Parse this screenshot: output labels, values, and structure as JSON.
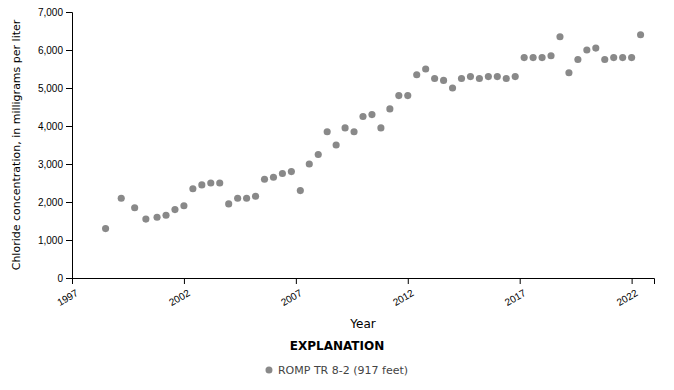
{
  "chart_data": {
    "type": "scatter",
    "xlabel": "Year",
    "ylabel": "Chloride concentration, in milligrams per liter",
    "xlim": [
      1997,
      2023
    ],
    "ylim": [
      0,
      7000
    ],
    "xticks": [
      1997,
      2002,
      2007,
      2012,
      2017,
      2022
    ],
    "yticks": [
      0,
      {
        "value": 1000,
        "label": "1,000"
      },
      {
        "value": 2000,
        "label": "2,000"
      },
      {
        "value": 3000,
        "label": "3,000"
      },
      {
        "value": 4000,
        "label": "4,000"
      },
      {
        "value": 5000,
        "label": "5,000"
      },
      {
        "value": 6000,
        "label": "6,000"
      },
      {
        "value": 7000,
        "label": "7,000"
      }
    ],
    "grid": false,
    "legend": "bottom",
    "annotations": [
      "EXPLANATION"
    ],
    "series": [
      {
        "name": "ROMP TR 8-2 (917 feet)",
        "color": "#898989",
        "marker": "circle",
        "x": [
          1998.5,
          1999.2,
          1999.8,
          2000.3,
          2000.8,
          2001.2,
          2001.6,
          2002.0,
          2002.4,
          2002.8,
          2003.2,
          2003.6,
          2004.0,
          2004.4,
          2004.8,
          2005.2,
          2005.6,
          2006.0,
          2006.4,
          2006.8,
          2007.2,
          2007.6,
          2008.0,
          2008.4,
          2008.8,
          2009.2,
          2009.6,
          2010.0,
          2010.4,
          2010.8,
          2011.2,
          2011.6,
          2012.0,
          2012.4,
          2012.8,
          2013.2,
          2013.6,
          2014.0,
          2014.4,
          2014.8,
          2015.2,
          2015.6,
          2016.0,
          2016.4,
          2016.8,
          2017.2,
          2017.6,
          2018.0,
          2018.4,
          2018.8,
          2019.2,
          2019.6,
          2020.0,
          2020.4,
          2020.8,
          2021.2,
          2021.6,
          2022.0,
          2022.4
        ],
        "values": [
          1300,
          2100,
          1850,
          1550,
          1600,
          1650,
          1800,
          1900,
          2350,
          2450,
          2500,
          2500,
          1950,
          2100,
          2100,
          2150,
          2600,
          2650,
          2750,
          2800,
          2300,
          3000,
          3250,
          3850,
          3500,
          3950,
          3850,
          4250,
          4300,
          3950,
          4450,
          4800,
          4800,
          5350,
          5500,
          5250,
          5200,
          5000,
          5250,
          5300,
          5250,
          5300,
          5300,
          5250,
          5300,
          5800,
          5800,
          5800,
          5850,
          6350,
          5400,
          5750,
          6000,
          6050,
          5750,
          5800,
          5800,
          5800,
          6400
        ]
      }
    ]
  }
}
